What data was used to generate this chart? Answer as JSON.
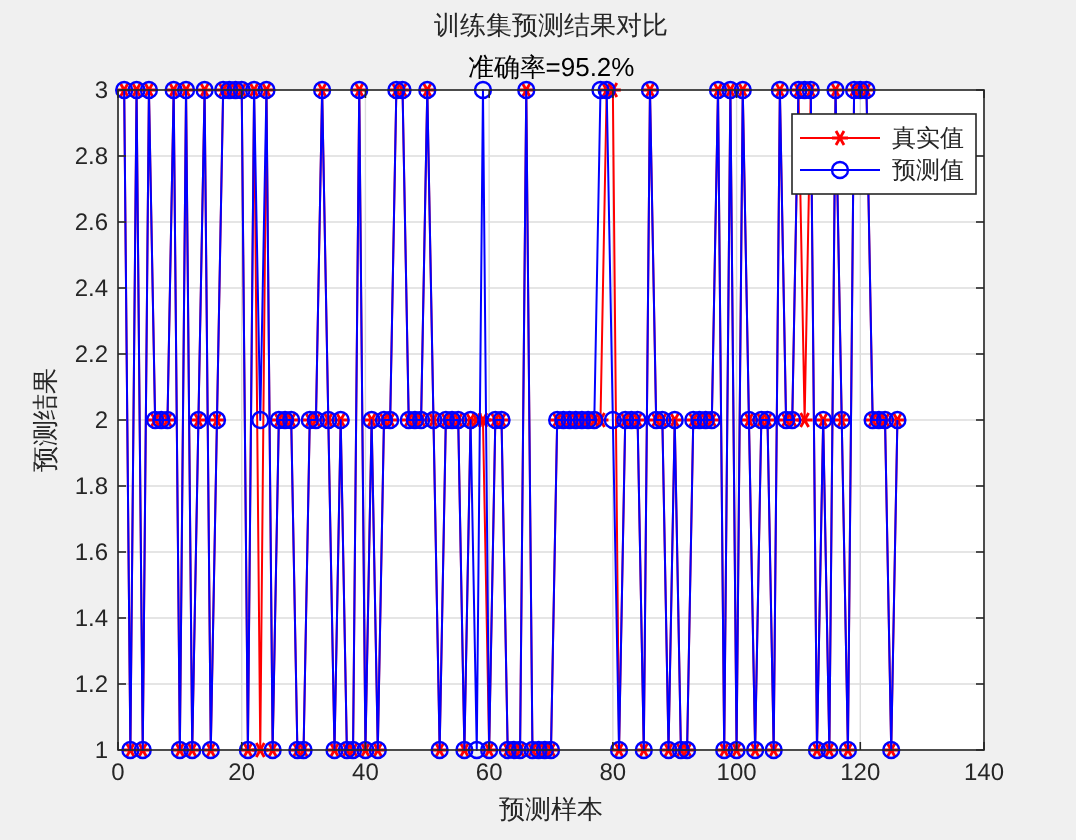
{
  "chart_data": {
    "type": "line",
    "title": "训练集预测结果对比",
    "subtitle": "准确率=95.2%",
    "xlabel": "预测样本",
    "ylabel": "预测结果",
    "x": [
      1,
      2,
      3,
      4,
      5,
      6,
      7,
      8,
      9,
      10,
      11,
      12,
      13,
      14,
      15,
      16,
      17,
      18,
      19,
      20,
      21,
      22,
      23,
      24,
      25,
      26,
      27,
      28,
      29,
      30,
      31,
      32,
      33,
      34,
      35,
      36,
      37,
      38,
      39,
      40,
      41,
      42,
      43,
      44,
      45,
      46,
      47,
      48,
      49,
      50,
      51,
      52,
      53,
      54,
      55,
      56,
      57,
      58,
      59,
      60,
      61,
      62,
      63,
      64,
      65,
      66,
      67,
      68,
      69,
      70,
      71,
      72,
      73,
      74,
      75,
      76,
      77,
      78,
      79,
      80,
      81,
      82,
      83,
      84,
      85,
      86,
      87,
      88,
      89,
      90,
      91,
      92,
      93,
      94,
      95,
      96,
      97,
      98,
      99,
      100,
      101,
      102,
      103,
      104,
      105,
      106,
      107,
      108,
      109,
      110,
      111,
      112,
      113,
      114,
      115,
      116,
      117,
      118,
      119,
      120,
      121,
      122,
      123,
      124,
      125,
      126
    ],
    "series": [
      {
        "name": "真实值",
        "color": "#ff0000",
        "marker": "cross",
        "values": [
          3,
          1,
          3,
          1,
          3,
          2,
          2,
          2,
          3,
          1,
          3,
          1,
          2,
          3,
          1,
          2,
          3,
          3,
          3,
          3,
          1,
          3,
          1,
          3,
          1,
          2,
          2,
          2,
          1,
          1,
          2,
          2,
          3,
          2,
          1,
          2,
          1,
          1,
          3,
          1,
          2,
          1,
          2,
          2,
          3,
          3,
          2,
          2,
          2,
          3,
          2,
          1,
          2,
          2,
          2,
          1,
          2,
          2,
          2,
          1,
          2,
          2,
          1,
          1,
          1,
          3,
          1,
          1,
          1,
          1,
          2,
          2,
          2,
          2,
          2,
          2,
          2,
          2,
          3,
          3,
          1,
          2,
          2,
          2,
          1,
          3,
          2,
          2,
          1,
          2,
          1,
          1,
          2,
          2,
          2,
          2,
          3,
          1,
          3,
          1,
          3,
          2,
          1,
          2,
          2,
          1,
          3,
          2,
          2,
          3,
          2,
          3,
          1,
          2,
          1,
          3,
          2,
          1,
          3,
          3,
          3,
          2,
          2,
          2,
          1,
          2
        ]
      },
      {
        "name": "预测值",
        "color": "#0000ff",
        "marker": "circle",
        "values": [
          3,
          1,
          3,
          1,
          3,
          2,
          2,
          2,
          3,
          1,
          3,
          1,
          2,
          3,
          1,
          2,
          3,
          3,
          3,
          3,
          1,
          3,
          2,
          3,
          1,
          2,
          2,
          2,
          1,
          1,
          2,
          2,
          3,
          2,
          1,
          2,
          1,
          1,
          3,
          1,
          2,
          1,
          2,
          2,
          3,
          3,
          2,
          2,
          2,
          3,
          2,
          1,
          2,
          2,
          2,
          1,
          2,
          1,
          3,
          1,
          2,
          2,
          1,
          1,
          1,
          3,
          1,
          1,
          1,
          1,
          2,
          2,
          2,
          2,
          2,
          2,
          2,
          3,
          3,
          2,
          1,
          2,
          2,
          2,
          1,
          3,
          2,
          2,
          1,
          2,
          1,
          1,
          2,
          2,
          2,
          2,
          3,
          1,
          3,
          1,
          3,
          2,
          1,
          2,
          2,
          1,
          3,
          2,
          2,
          3,
          3,
          3,
          1,
          2,
          1,
          3,
          2,
          1,
          3,
          3,
          3,
          2,
          2,
          2,
          1,
          2
        ]
      }
    ],
    "xlim": [
      0,
      140
    ],
    "xticks": [
      0,
      20,
      40,
      60,
      80,
      100,
      120,
      140
    ],
    "ylim": [
      1,
      3
    ],
    "yticks": [
      1,
      1.2,
      1.4,
      1.6,
      1.8,
      2,
      2.2,
      2.4,
      2.6,
      2.8,
      3
    ],
    "grid": true,
    "legend": "top right"
  }
}
